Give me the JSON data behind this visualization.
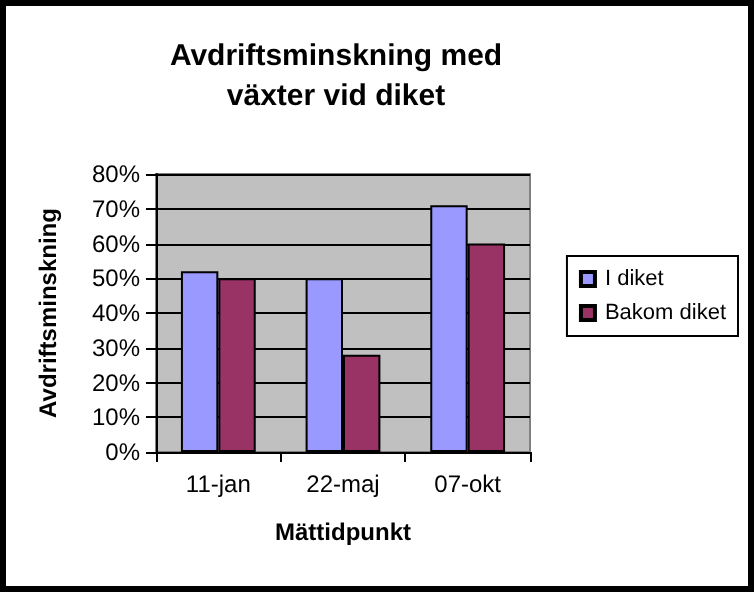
{
  "chart_data": {
    "type": "bar",
    "title": "Avdriftsminskning med\nväxter vid diket",
    "xlabel": "Mättidpunkt",
    "ylabel": "Avdriftsminskning",
    "categories": [
      "11-jan",
      "22-maj",
      "07-okt"
    ],
    "series": [
      {
        "name": "I diket",
        "color": "#9999ff",
        "values": [
          52,
          50,
          71
        ]
      },
      {
        "name": "Bakom diket",
        "color": "#993366",
        "values": [
          50,
          28,
          60
        ]
      }
    ],
    "ylim": [
      0,
      80
    ],
    "yticks": [
      {
        "value": 0,
        "label": "0%"
      },
      {
        "value": 10,
        "label": "10%"
      },
      {
        "value": 20,
        "label": "20%"
      },
      {
        "value": 30,
        "label": "30%"
      },
      {
        "value": 40,
        "label": "40%"
      },
      {
        "value": 50,
        "label": "50%"
      },
      {
        "value": 60,
        "label": "60%"
      },
      {
        "value": 70,
        "label": "70%"
      },
      {
        "value": 80,
        "label": "80%"
      }
    ],
    "grid": "y",
    "legend": "right"
  }
}
